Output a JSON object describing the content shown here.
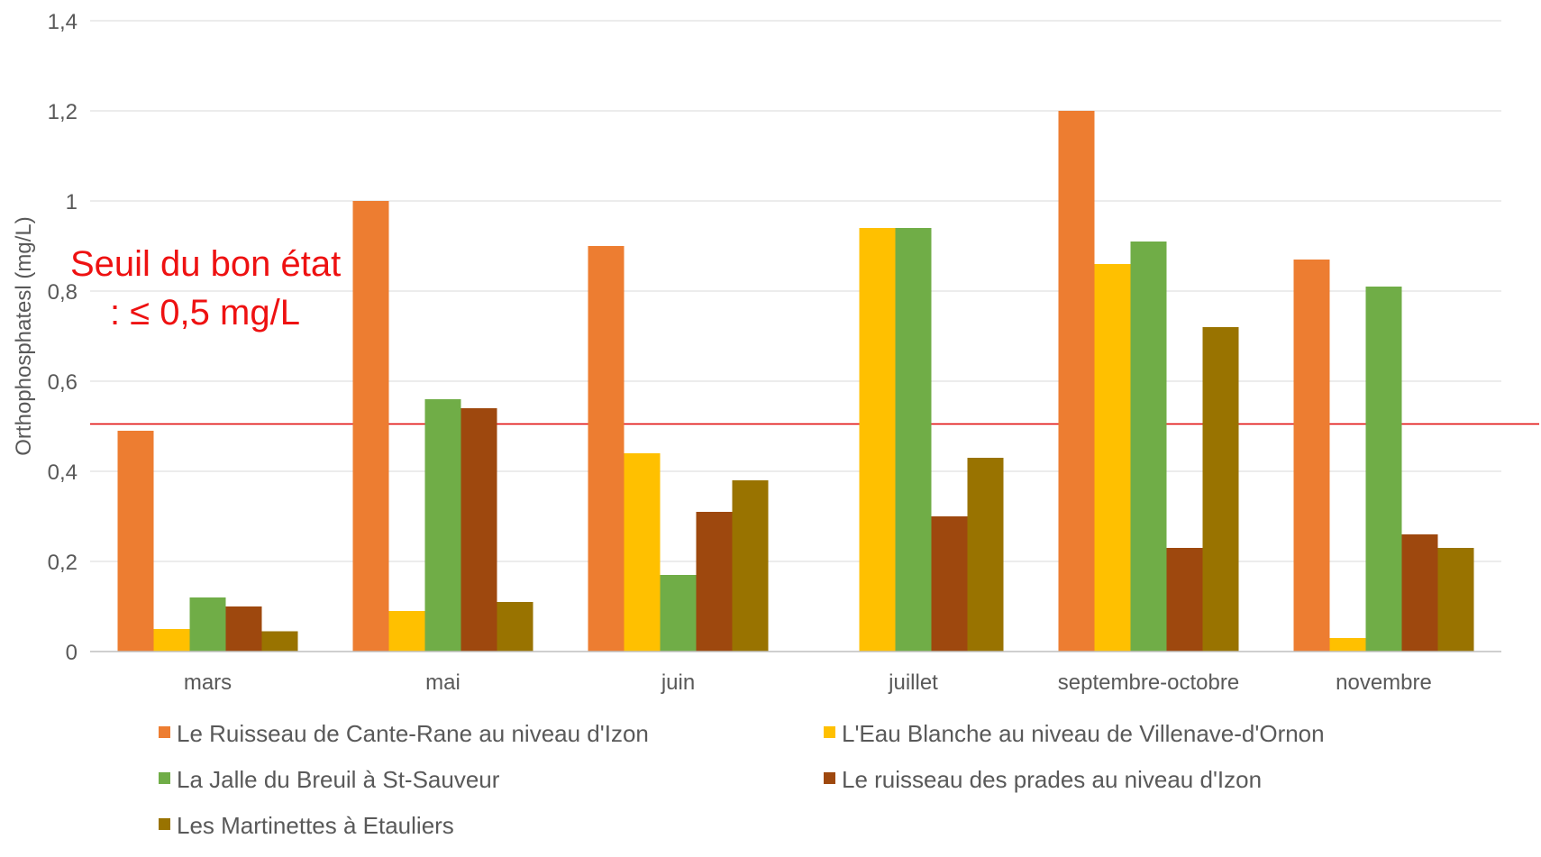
{
  "chart_data": {
    "type": "bar",
    "ylabel": "Orthophosphatesl (mg/L)",
    "ylim": [
      0,
      1.4
    ],
    "yticks": [
      "0",
      "0,2",
      "0,4",
      "0,6",
      "0,8",
      "1",
      "1,2",
      "1,4"
    ],
    "ytick_values": [
      0,
      0.2,
      0.4,
      0.6,
      0.8,
      1.0,
      1.2,
      1.4
    ],
    "grid": true,
    "legend_position": "bottom",
    "categories": [
      "mars",
      "mai",
      "juin",
      "juillet",
      "septembre-octobre",
      "novembre"
    ],
    "series": [
      {
        "name": "Le Ruisseau de Cante-Rane au niveau d'Izon",
        "color": "#ed7d31",
        "values": [
          0.49,
          1.0,
          0.9,
          null,
          1.2,
          0.87
        ]
      },
      {
        "name": "L'Eau Blanche au niveau de Villenave-d'Ornon",
        "color": "#ffc000",
        "values": [
          0.05,
          0.09,
          0.44,
          0.94,
          0.86,
          0.03
        ]
      },
      {
        "name": "La Jalle du Breuil à St-Sauveur",
        "color": "#70ad47",
        "values": [
          0.12,
          0.56,
          0.17,
          0.94,
          0.91,
          0.81
        ]
      },
      {
        "name": "Le ruisseau des prades au niveau d'Izon",
        "color": "#9e480e",
        "values": [
          0.1,
          0.54,
          0.31,
          0.3,
          0.23,
          0.26
        ]
      },
      {
        "name": "Les Martinettes à Etauliers",
        "color": "#997300",
        "values": [
          0.045,
          0.11,
          0.38,
          0.43,
          0.72,
          0.23
        ]
      }
    ],
    "threshold": {
      "value": 0.505,
      "color": "#e00000",
      "label_line1": "Seuil du bon état",
      "label_line2": ": ≤ 0,5 mg/L"
    }
  }
}
